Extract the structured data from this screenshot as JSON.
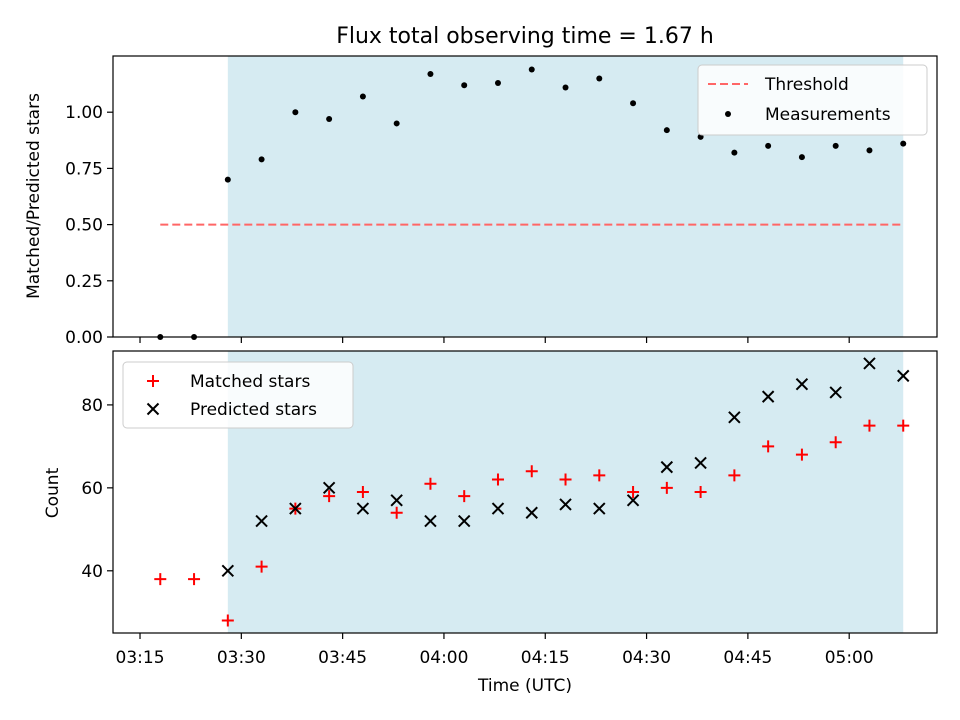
{
  "chart_data": [
    {
      "type": "scatter",
      "title": "Flux total observing time = 1.67 h",
      "xlabel": "",
      "ylabel": "Matched/Predicted stars",
      "xlim": [
        "03:11",
        "05:13"
      ],
      "ylim": [
        0,
        1.25
      ],
      "yticks": [
        0.0,
        0.25,
        0.5,
        0.75,
        1.0
      ],
      "ytick_labels": [
        "0.00",
        "0.25",
        "0.50",
        "0.75",
        "1.00"
      ],
      "shaded_region": {
        "x": [
          "03:28",
          "05:08"
        ],
        "color": "#add8e6"
      },
      "legend": {
        "position": "top-right",
        "entries": [
          "Threshold",
          "Measurements"
        ]
      },
      "series": [
        {
          "name": "Threshold",
          "kind": "dashed-line",
          "color": "#ff6666",
          "points": [
            [
              "03:18",
              0.5
            ],
            [
              "05:08",
              0.5
            ]
          ]
        },
        {
          "name": "Measurements",
          "kind": "dots",
          "color": "#000000",
          "x": [
            "03:18",
            "03:23",
            "03:28",
            "03:33",
            "03:38",
            "03:43",
            "03:48",
            "03:53",
            "03:58",
            "04:03",
            "04:08",
            "04:13",
            "04:18",
            "04:23",
            "04:28",
            "04:33",
            "04:38",
            "04:43",
            "04:48",
            "04:53",
            "04:58",
            "05:03",
            "05:08"
          ],
          "y": [
            0.0,
            0.0,
            0.7,
            0.79,
            1.0,
            0.97,
            1.07,
            0.95,
            1.17,
            1.12,
            1.13,
            1.19,
            1.11,
            1.15,
            1.04,
            0.92,
            0.89,
            0.82,
            0.85,
            0.8,
            0.85,
            0.83,
            0.86
          ]
        }
      ]
    },
    {
      "type": "scatter",
      "title": "",
      "xlabel": "Time (UTC)",
      "ylabel": "Count",
      "xlim": [
        "03:11",
        "05:13"
      ],
      "ylim": [
        25,
        93
      ],
      "xticks": [
        "03:15",
        "03:30",
        "03:45",
        "04:00",
        "04:15",
        "04:30",
        "04:45",
        "05:00"
      ],
      "yticks": [
        40,
        60,
        80
      ],
      "ytick_labels": [
        "40",
        "60",
        "80"
      ],
      "shaded_region": {
        "x": [
          "03:28",
          "05:08"
        ],
        "color": "#add8e6"
      },
      "legend": {
        "position": "top-left",
        "entries": [
          "Matched stars",
          "Predicted stars"
        ]
      },
      "series": [
        {
          "name": "Matched stars",
          "marker": "+",
          "color": "#ff0000",
          "x": [
            "03:18",
            "03:23",
            "03:28",
            "03:33",
            "03:38",
            "03:43",
            "03:48",
            "03:53",
            "03:58",
            "04:03",
            "04:08",
            "04:13",
            "04:18",
            "04:23",
            "04:28",
            "04:33",
            "04:38",
            "04:43",
            "04:48",
            "04:53",
            "04:58",
            "05:03",
            "05:08"
          ],
          "y": [
            38,
            38,
            28,
            41,
            55,
            58,
            59,
            54,
            61,
            58,
            62,
            64,
            62,
            63,
            59,
            60,
            59,
            63,
            70,
            68,
            71,
            75,
            75
          ]
        },
        {
          "name": "Predicted stars",
          "marker": "x",
          "color": "#000000",
          "x": [
            "03:28",
            "03:33",
            "03:38",
            "03:43",
            "03:48",
            "03:53",
            "03:58",
            "04:03",
            "04:08",
            "04:13",
            "04:18",
            "04:23",
            "04:28",
            "04:33",
            "04:38",
            "04:43",
            "04:48",
            "04:53",
            "04:58",
            "05:03",
            "05:08"
          ],
          "y": [
            40,
            52,
            55,
            60,
            55,
            57,
            52,
            52,
            55,
            54,
            56,
            55,
            57,
            65,
            66,
            77,
            82,
            85,
            83,
            90,
            87
          ]
        }
      ]
    }
  ]
}
